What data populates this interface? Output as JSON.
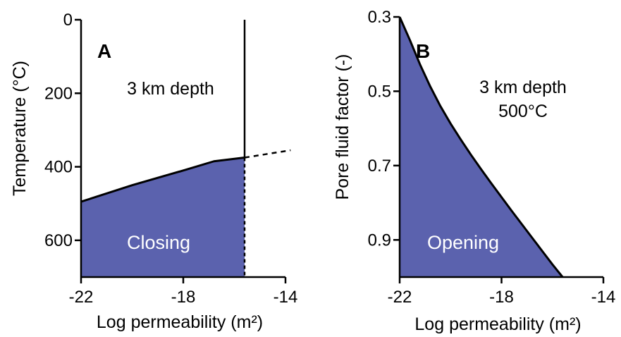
{
  "chart_data": [
    {
      "type": "area",
      "panel_label": "A",
      "xlabel": "Log permeability (m²)",
      "ylabel": "Temperature (°C)",
      "xlim": [
        -22,
        -14
      ],
      "ylim": [
        0,
        700
      ],
      "y_inverted": true,
      "xticks": [
        "-22",
        "-18",
        "-14"
      ],
      "yticks": [
        "0",
        "200",
        "400",
        "600"
      ],
      "xtick_values": [
        -22,
        -18,
        -14
      ],
      "ytick_values": [
        0,
        200,
        400,
        600
      ],
      "annotation": [
        "3 km depth"
      ],
      "region_label": "Closing",
      "fill_color": "#5b62ae",
      "series": [
        {
          "boundary": {
            "x": [
              -22,
              -20,
              -18,
              -16.8,
              -15.6
            ],
            "y": [
              495,
              450,
              410,
              385,
              375
            ]
          },
          "vertical_line": {
            "x": -15.6,
            "y": [
              0,
              375
            ]
          },
          "dashed_extension": {
            "x": [
              -15.6,
              -13.8
            ],
            "y": [
              375,
              355
            ]
          },
          "dashed_vertical": {
            "x": -15.6,
            "y": [
              375,
              700
            ]
          }
        }
      ]
    },
    {
      "type": "area",
      "panel_label": "B",
      "xlabel": "Log permeability (m²)",
      "ylabel": "Pore fluid factor (-)",
      "xlim": [
        -22,
        -14
      ],
      "ylim": [
        0.3,
        1.0
      ],
      "y_inverted": true,
      "xticks": [
        "-22",
        "-18",
        "-14"
      ],
      "yticks": [
        "0.3",
        "0.5",
        "0.7",
        "0.9"
      ],
      "xtick_values": [
        -22,
        -18,
        -14
      ],
      "ytick_values": [
        0.3,
        0.5,
        0.7,
        0.9
      ],
      "annotation": [
        "3 km depth",
        "500°C"
      ],
      "region_label": "Opening",
      "fill_color": "#5b62ae",
      "series": [
        {
          "boundary": {
            "x": [
              -22,
              -21.6,
              -21.2,
              -20.8,
              -20.4,
              -20,
              -19.6,
              -19.2,
              -18.8,
              -18.4,
              -18,
              -17.6,
              -17.2,
              -16.8,
              -16.4,
              -16,
              -15.6
            ],
            "y": [
              0.3,
              0.362,
              0.428,
              0.487,
              0.54,
              0.587,
              0.63,
              0.671,
              0.71,
              0.748,
              0.785,
              0.822,
              0.858,
              0.894,
              0.93,
              0.966,
              1.0
            ]
          }
        }
      ]
    }
  ]
}
